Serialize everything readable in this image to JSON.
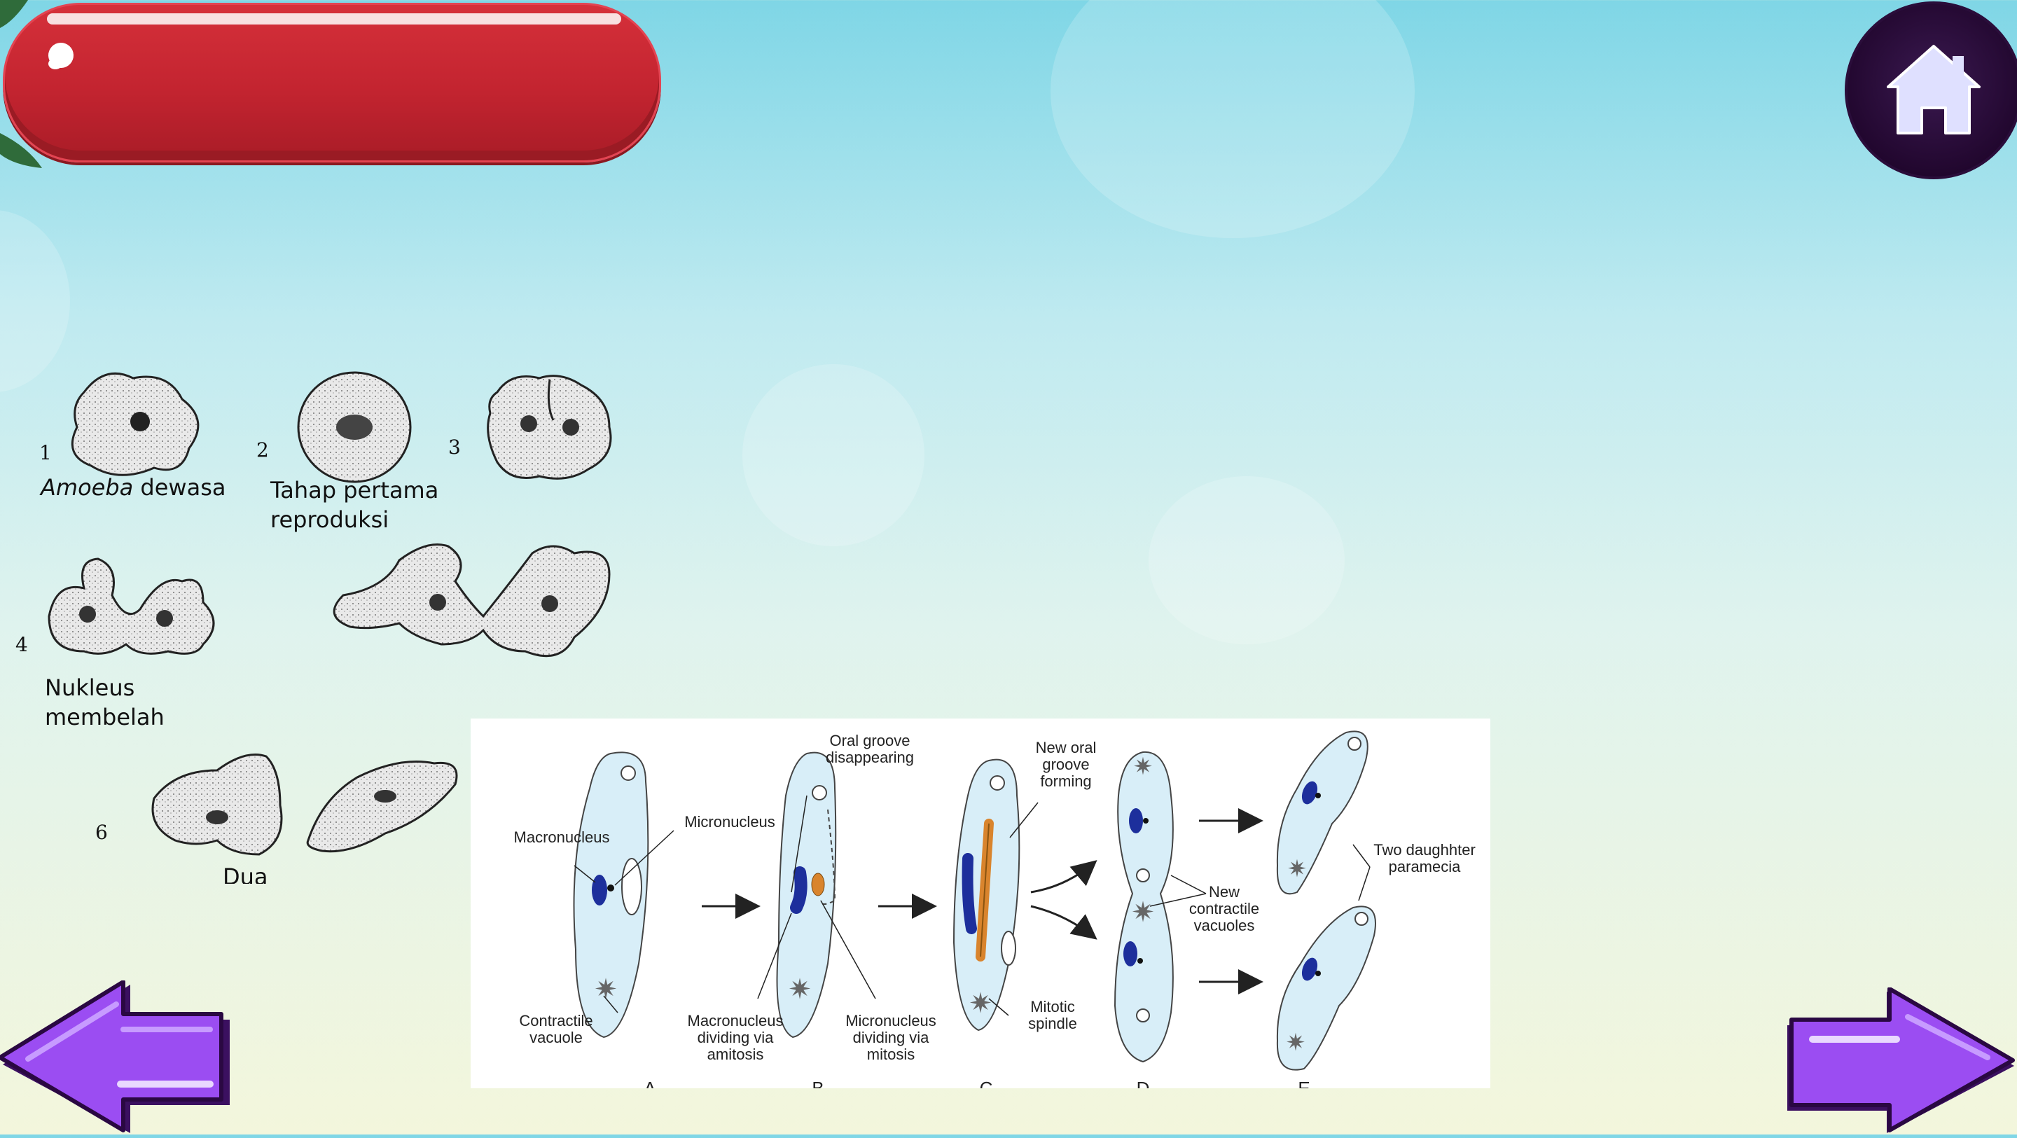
{
  "header": {
    "title": ""
  },
  "home_button": {
    "icon": "home-icon",
    "color": "#22072f"
  },
  "navigation": {
    "prev_icon": "arrow-left-icon",
    "next_icon": "arrow-right-icon",
    "arrow_color": "#9b4df2"
  },
  "amoeba_figure": {
    "steps": [
      "1",
      "2",
      "3",
      "4",
      "6"
    ],
    "labels": {
      "step1_italic": "Amoeba",
      "step1_rest": " dewasa",
      "step2_line1": "Tahap pertama",
      "step2_line2": "reproduksi",
      "step4_line1": "Nukleus",
      "step4_line2": "membelah",
      "step6_partial": "Dua"
    }
  },
  "paramecium_figure": {
    "labels": {
      "oral_groove_disappearing": "Oral groove disappearing",
      "new_oral_groove": "New oral groove forming",
      "macronucleus": "Macronucleus",
      "micronucleus": "Micronucleus",
      "new_contractile": "New contractile vacuoles",
      "two_daughter": "Two daughhter paramecia",
      "contractile_vacuole": "Contractile vacuole",
      "macronucleus_dividing": "Macronucleus dividing via amitosis",
      "micronucleus_dividing": "Micronucleus dividing via mitosis",
      "mitotic_spindle": "Mitotic spindle"
    },
    "stage_letters": [
      "A",
      "B",
      "C",
      "D",
      "E"
    ]
  }
}
